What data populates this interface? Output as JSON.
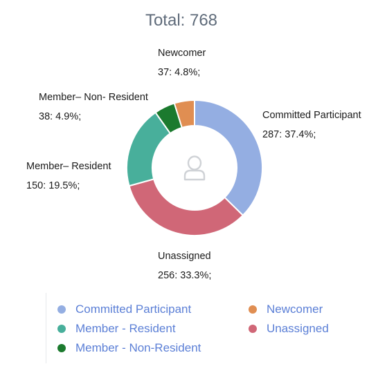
{
  "title": "Total: 768",
  "center_icon": "person-icon",
  "chart_data": {
    "type": "pie",
    "variant": "donut",
    "total": 768,
    "slices": [
      {
        "label": "Committed Participant",
        "value": 287,
        "percent": 37.4,
        "text": "287: 37.4%;",
        "color": "#94aee2"
      },
      {
        "label": "Unassigned",
        "value": 256,
        "percent": 33.3,
        "text": "256: 33.3%;",
        "color": "#d06777"
      },
      {
        "label": "Member– Resident",
        "value": 150,
        "percent": 19.5,
        "text": "150: 19.5%;",
        "color": "#48af9b"
      },
      {
        "label": "Member– Non- Resident",
        "value": 38,
        "percent": 4.9,
        "text": "38: 4.9%;",
        "color": "#1b7a2e"
      },
      {
        "label": "Newcomer",
        "value": 37,
        "percent": 4.8,
        "text": "37: 4.8%;",
        "color": "#e08e52"
      }
    ],
    "legend": [
      {
        "label": "Committed Participant",
        "color": "#94aee2"
      },
      {
        "label": "Newcomer",
        "color": "#e08e52"
      },
      {
        "label": "Member - Resident",
        "color": "#48af9b"
      },
      {
        "label": "Unassigned",
        "color": "#d06777"
      },
      {
        "label": "Member - Non-Resident",
        "color": "#1b7a2e"
      }
    ],
    "legend_placement": "bottom"
  }
}
